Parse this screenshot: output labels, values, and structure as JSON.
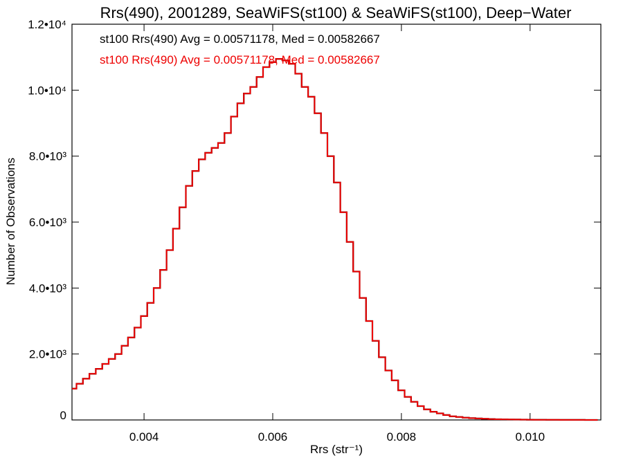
{
  "chart_data": {
    "type": "histogram",
    "title": "Rrs(490), 2001289, SeaWiFS(st100) & SeaWiFS(st100), Deep−Water",
    "xlabel": "Rrs (str⁻¹)",
    "ylabel": "Number of Observations",
    "xlim": [
      0.00288,
      0.0111
    ],
    "ylim": [
      0,
      12000
    ],
    "x_ticks": [
      {
        "value": 0.004,
        "label": "0.004"
      },
      {
        "value": 0.006,
        "label": "0.006"
      },
      {
        "value": 0.008,
        "label": "0.008"
      },
      {
        "value": 0.01,
        "label": "0.010"
      }
    ],
    "y_ticks": [
      {
        "value": 0,
        "label": "0"
      },
      {
        "value": 2000,
        "label": "2.0•10³"
      },
      {
        "value": 4000,
        "label": "4.0•10³"
      },
      {
        "value": 6000,
        "label": "6.0•10³"
      },
      {
        "value": 8000,
        "label": "8.0•10³"
      },
      {
        "value": 10000,
        "label": "1.0•10⁴"
      },
      {
        "value": 12000,
        "label": "1.2•10⁴"
      }
    ],
    "grid": false,
    "annotations": [
      {
        "text": "st100 Rrs(490) Avg = 0.00571178, Med = 0.00582667",
        "color": "#000000"
      },
      {
        "text": "st100 Rrs(490) Avg = 0.00571178, Med = 0.00582667",
        "color": "#ee0000"
      }
    ],
    "series": [
      {
        "color_under": "#000000",
        "color": "#ee0000",
        "x": [
          0.0029,
          0.003,
          0.0031,
          0.0032,
          0.0033,
          0.0034,
          0.0035,
          0.0036,
          0.0037,
          0.0038,
          0.0039,
          0.004,
          0.0041,
          0.0042,
          0.0043,
          0.0044,
          0.0045,
          0.0046,
          0.0047,
          0.0048,
          0.0049,
          0.005,
          0.0051,
          0.0052,
          0.0053,
          0.0054,
          0.0055,
          0.0056,
          0.0057,
          0.0058,
          0.0059,
          0.006,
          0.0061,
          0.0062,
          0.0063,
          0.0064,
          0.0065,
          0.0066,
          0.0067,
          0.0068,
          0.0069,
          0.007,
          0.0071,
          0.0072,
          0.0073,
          0.0074,
          0.0075,
          0.0076,
          0.0077,
          0.0078,
          0.0079,
          0.008,
          0.0081,
          0.0082,
          0.0083,
          0.0084,
          0.0085,
          0.0086,
          0.0087,
          0.0088,
          0.0089,
          0.009,
          0.0091,
          0.0092,
          0.0093,
          0.0094,
          0.0095,
          0.0096,
          0.0097,
          0.0098,
          0.0099,
          0.01,
          0.0101,
          0.0102,
          0.0103,
          0.0104,
          0.0105,
          0.0106,
          0.0107,
          0.0108,
          0.0109,
          0.011
        ],
        "values": [
          950,
          1100,
          1250,
          1400,
          1550,
          1700,
          1850,
          2000,
          2250,
          2500,
          2800,
          3150,
          3550,
          4000,
          4550,
          5150,
          5800,
          6450,
          7100,
          7550,
          7900,
          8100,
          8250,
          8400,
          8700,
          9200,
          9600,
          9900,
          10100,
          10400,
          10700,
          10850,
          10950,
          10900,
          10800,
          10500,
          10100,
          9800,
          9300,
          8700,
          8000,
          7200,
          6300,
          5400,
          4500,
          3700,
          3000,
          2400,
          1900,
          1500,
          1200,
          900,
          700,
          550,
          420,
          320,
          250,
          200,
          150,
          110,
          90,
          70,
          55,
          45,
          35,
          28,
          22,
          18,
          15,
          12,
          10,
          8,
          7,
          6,
          5,
          4,
          3,
          3,
          2,
          2,
          1,
          1
        ]
      }
    ]
  }
}
